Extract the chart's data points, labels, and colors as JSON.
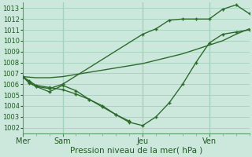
{
  "background_color": "#cce8dc",
  "grid_color": "#a8d4c0",
  "line_color": "#2d6b2d",
  "marker_color": "#2d6b2d",
  "title": "Pression niveau de la mer( hPa )",
  "day_labels": [
    "Mer",
    "Sam",
    "Jeu",
    "Ven"
  ],
  "day_positions": [
    0,
    3,
    9,
    14
  ],
  "ylim": [
    1001.5,
    1013.5
  ],
  "yticks": [
    1002,
    1003,
    1004,
    1005,
    1006,
    1007,
    1008,
    1009,
    1010,
    1011,
    1012,
    1013
  ],
  "xlim": [
    0,
    17
  ],
  "vline_positions": [
    3,
    9,
    14
  ],
  "line1_x": [
    0,
    0.5,
    1,
    2,
    3,
    4,
    5,
    6,
    7,
    8,
    9,
    10,
    11,
    12,
    13,
    14,
    15,
    16,
    17
  ],
  "line1_y": [
    1006.7,
    1006.3,
    1005.9,
    1005.7,
    1005.5,
    1005.1,
    1004.6,
    1004.0,
    1003.2,
    1002.5,
    1002.2,
    1003.0,
    1004.3,
    1006.0,
    1008.0,
    1009.8,
    1010.6,
    1010.8,
    1011.0
  ],
  "line2_x": [
    0,
    1,
    2,
    3,
    4,
    5,
    6,
    7,
    8,
    9,
    10,
    11,
    12,
    13,
    14,
    15,
    16,
    17
  ],
  "line2_y": [
    1006.7,
    1006.6,
    1006.6,
    1006.7,
    1006.9,
    1007.1,
    1007.3,
    1007.5,
    1007.7,
    1007.9,
    1008.2,
    1008.5,
    1008.8,
    1009.2,
    1009.6,
    1010.0,
    1010.6,
    1011.1
  ],
  "line3_x": [
    0,
    0.5,
    1,
    2,
    3,
    9,
    10,
    11,
    12,
    13,
    14,
    15,
    16,
    17
  ],
  "line3_y": [
    1006.7,
    1006.1,
    1005.8,
    1005.6,
    1006.0,
    1010.6,
    1011.1,
    1011.9,
    1012.0,
    1012.0,
    1012.0,
    1012.9,
    1013.3,
    1012.5
  ],
  "line4_x": [
    0,
    0.5,
    1,
    2,
    3,
    4,
    5,
    6,
    7,
    8
  ],
  "line4_y": [
    1006.7,
    1006.2,
    1005.8,
    1005.3,
    1005.9,
    1005.4,
    1004.6,
    1003.9,
    1003.2,
    1002.6
  ]
}
